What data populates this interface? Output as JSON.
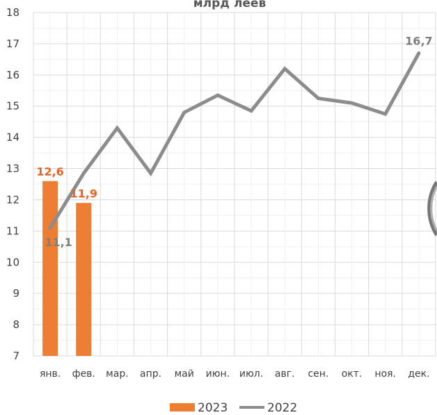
{
  "chart_data": {
    "type": "bar",
    "title": "млрд леев",
    "categories": [
      "янв.",
      "фев.",
      "мар.",
      "апр.",
      "май",
      "июн.",
      "июл.",
      "авг.",
      "сен.",
      "окт.",
      "ноя.",
      "дек."
    ],
    "ylim": [
      7,
      18
    ],
    "yticks": [
      7,
      8,
      9,
      10,
      11,
      12,
      13,
      14,
      15,
      16,
      17,
      18
    ],
    "grid": true,
    "legend_position": "bottom",
    "series": [
      {
        "name": "2023",
        "type": "bar",
        "color": "#ED7D31",
        "values": [
          12.6,
          11.9,
          null,
          null,
          null,
          null,
          null,
          null,
          null,
          null,
          null,
          null
        ]
      },
      {
        "name": "2022",
        "type": "line",
        "color": "#8C8C8C",
        "values": [
          11.1,
          12.85,
          14.3,
          12.85,
          14.8,
          15.35,
          14.85,
          16.2,
          15.25,
          15.1,
          14.75,
          16.7
        ]
      }
    ],
    "data_labels": [
      {
        "series": "2023",
        "index": 0,
        "text": "12,6",
        "color": "#E0662A"
      },
      {
        "series": "2023",
        "index": 1,
        "text": "11,9",
        "color": "#E0662A"
      },
      {
        "series": "2022",
        "index": 0,
        "text": "11,1",
        "color": "#7F7F7F"
      },
      {
        "series": "2022",
        "index": 11,
        "text": "16,7",
        "color": "#7F7F7F"
      }
    ]
  }
}
